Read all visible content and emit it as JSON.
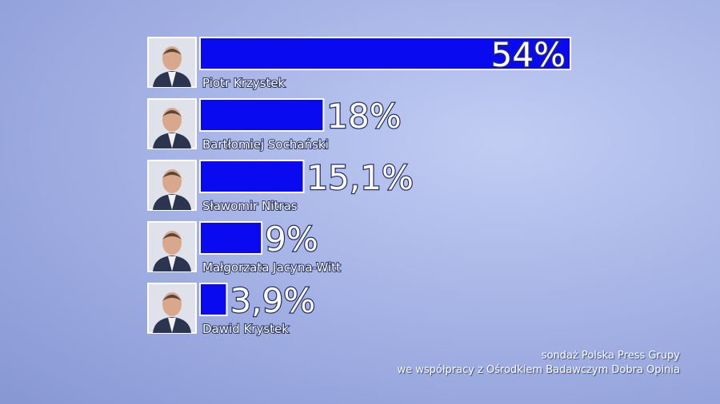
{
  "colors": {
    "bar": "#0a0af0",
    "label": "#ffffff"
  },
  "chart_data": {
    "type": "bar",
    "orientation": "horizontal",
    "categories": [
      "Piotr Krzystek",
      "Bartłomiej Sochański",
      "Sławomir Nitras",
      "Małgorzata Jacyna-Witt",
      "Dawid Krystek"
    ],
    "values": [
      54,
      18,
      15.1,
      9,
      3.9
    ],
    "value_labels": [
      "54%",
      "18%",
      "15,1%",
      "9%",
      "3,9%"
    ],
    "xlim": [
      0,
      54
    ],
    "grid": false,
    "legend": "none"
  },
  "source": {
    "line1": "sondaż Polska Press Grupy",
    "line2": "we współpracy z Ośrodkiem Badawczym Dobra Opinia"
  }
}
